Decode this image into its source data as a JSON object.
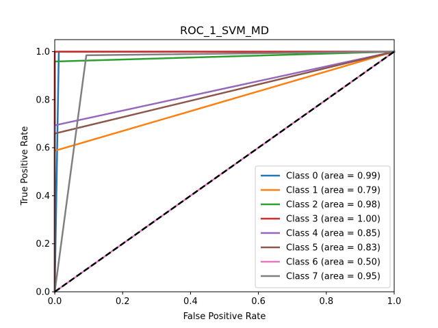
{
  "chart_data": {
    "type": "line",
    "title": "ROC_1_SVM_MD",
    "xlabel": "False Positive Rate",
    "ylabel": "True Positive Rate",
    "xlim": [
      0.0,
      1.0
    ],
    "ylim": [
      0.0,
      1.05
    ],
    "xticks": [
      0.0,
      0.2,
      0.4,
      0.6,
      0.8,
      1.0
    ],
    "yticks": [
      0.0,
      0.2,
      0.4,
      0.6,
      0.8,
      1.0
    ],
    "xtick_labels": [
      "0.0",
      "0.2",
      "0.4",
      "0.6",
      "0.8",
      "1.0"
    ],
    "ytick_labels": [
      "0.0",
      "0.2",
      "0.4",
      "0.6",
      "0.8",
      "1.0"
    ],
    "grid": false,
    "legend_position": "lower-right",
    "series": [
      {
        "name": "Class 0 (area = 0.99)",
        "color": "#1f77b4",
        "x": [
          0.0,
          0.012,
          1.0
        ],
        "y": [
          0.0,
          1.0,
          1.0
        ]
      },
      {
        "name": "Class 1 (area = 0.79)",
        "color": "#ff7f0e",
        "x": [
          0.0,
          0.0,
          1.0
        ],
        "y": [
          0.0,
          0.587,
          1.0
        ]
      },
      {
        "name": "Class 2 (area = 0.98)",
        "color": "#2ca02c",
        "x": [
          0.0,
          0.0,
          1.0
        ],
        "y": [
          0.0,
          0.959,
          1.0
        ]
      },
      {
        "name": "Class 3 (area = 1.00)",
        "color": "#d62728",
        "x": [
          0.0,
          0.0,
          1.0
        ],
        "y": [
          0.0,
          1.0,
          1.0
        ]
      },
      {
        "name": "Class 4 (area = 0.85)",
        "color": "#9467bd",
        "x": [
          0.0,
          0.0,
          1.0
        ],
        "y": [
          0.0,
          0.693,
          1.0
        ]
      },
      {
        "name": "Class 5 (area = 0.83)",
        "color": "#8c564b",
        "x": [
          0.0,
          0.0,
          1.0
        ],
        "y": [
          0.0,
          0.659,
          1.0
        ]
      },
      {
        "name": "Class 6 (area = 0.50)",
        "color": "#e377c2",
        "x": [
          0.0,
          1.0
        ],
        "y": [
          0.0,
          1.0
        ]
      },
      {
        "name": "Class 7 (area = 0.95)",
        "color": "#7f7f7f",
        "x": [
          0.0,
          0.093,
          1.0
        ],
        "y": [
          0.0,
          0.985,
          1.0
        ]
      }
    ],
    "reference_line": {
      "color": "#000000",
      "style": "dashed",
      "x": [
        0.0,
        1.0
      ],
      "y": [
        0.0,
        1.0
      ]
    }
  }
}
